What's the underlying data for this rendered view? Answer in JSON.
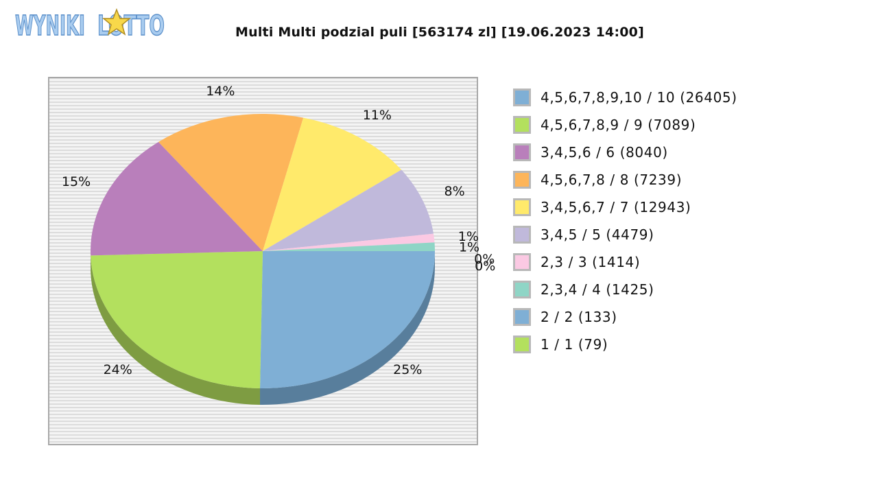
{
  "logo": {
    "text": "WYNIKI LOTTO"
  },
  "chart_data": {
    "type": "pie",
    "title": "Multi Multi podzial puli [563174 zl] [19.06.2023 14:00]",
    "slices": [
      {
        "legend": "4,5,6,7,8,9,10 / 10 (26405)",
        "value": 25,
        "label": "25%",
        "color": "#7fafd5",
        "side": "#587e9c"
      },
      {
        "legend": "4,5,6,7,8,9 / 9 (7089)",
        "value": 24,
        "label": "24%",
        "color": "#b3e05e",
        "side": "#7e9c42"
      },
      {
        "legend": "3,4,5,6 / 6 (8040)",
        "value": 15,
        "label": "15%",
        "color": "#b97fbb",
        "side": "#835a84"
      },
      {
        "legend": "4,5,6,7,8 / 8 (7239)",
        "value": 14,
        "label": "14%",
        "color": "#fdb55a",
        "side": "#b17f3f"
      },
      {
        "legend": "3,4,5,6,7 / 7 (12943)",
        "value": 11,
        "label": "11%",
        "color": "#ffea6b",
        "side": "#b3a44b"
      },
      {
        "legend": "3,4,5 / 5 (4479)",
        "value": 8,
        "label": "8%",
        "color": "#c0b9db",
        "side": "#87829a"
      },
      {
        "legend": "2,3 / 3 (1414)",
        "value": 1,
        "label": "1%",
        "color": "#fbc9e3",
        "side": "#b08da0"
      },
      {
        "legend": "2,3,4 / 4 (1425)",
        "value": 1,
        "label": "1%",
        "color": "#8fd5c6",
        "side": "#65968b"
      },
      {
        "legend": "2 / 2 (133)",
        "value": 0,
        "label": "0%",
        "color": "#7fafd5",
        "side": "#587e9c"
      },
      {
        "legend": "1 / 1 (79)",
        "value": 0,
        "label": "0%",
        "color": "#b3e05e",
        "side": "#7e9c42"
      }
    ],
    "legend_position": "right"
  }
}
